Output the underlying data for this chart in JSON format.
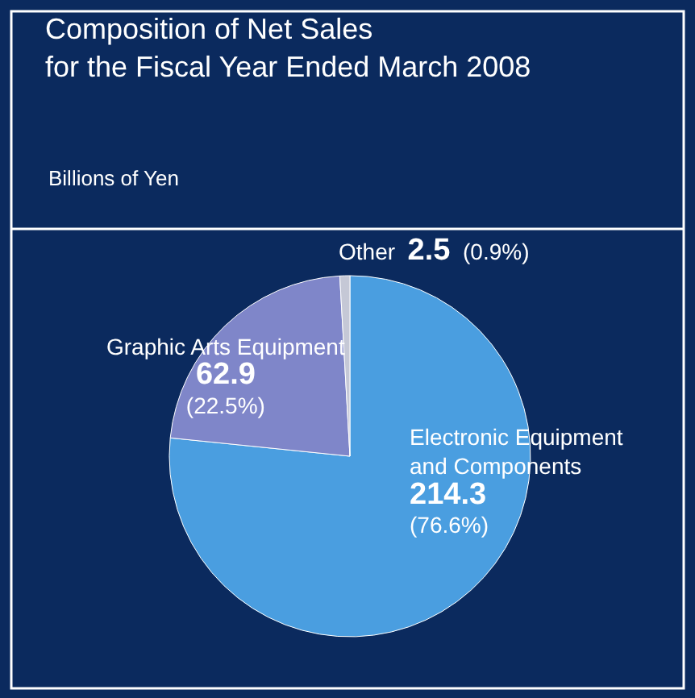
{
  "chart_data": {
    "type": "pie",
    "title": "Composition of Net Sales\nfor the Fiscal Year Ended March 2008",
    "subtitle": "Billions of Yen",
    "categories": [
      "Electronic Equipment\nand Components",
      "Graphic Arts Equipment",
      "Other"
    ],
    "values": [
      214.3,
      62.9,
      2.5
    ],
    "colors": [
      "#4a9ee0",
      "#7f86c9",
      "#c5c8d6"
    ],
    "data_labels": true,
    "annotations": [
      "(76.6%)",
      "(22.5%)",
      "(0.9%)"
    ],
    "legend": false
  }
}
